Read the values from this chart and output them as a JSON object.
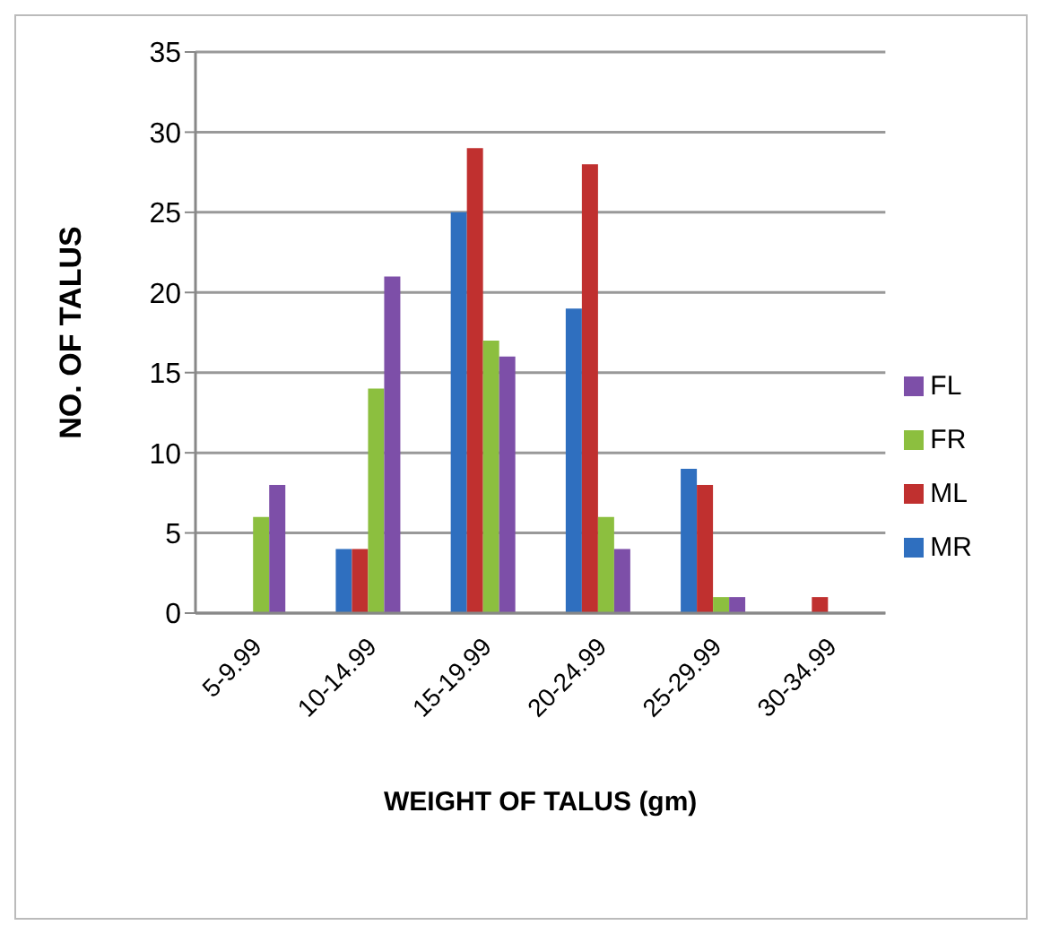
{
  "chart_data": {
    "type": "bar",
    "xlabel": "WEIGHT OF TALUS (gm)",
    "ylabel": "NO. OF TALUS",
    "categories": [
      "5-9.99",
      "10-14.99",
      "15-19.99",
      "20-24.99",
      "25-29.99",
      "30-34.99"
    ],
    "series": [
      {
        "name": "MR",
        "color": "#2f6fbf",
        "values": [
          0,
          4,
          25,
          19,
          9,
          0
        ]
      },
      {
        "name": "ML",
        "color": "#c0302f",
        "values": [
          0,
          4,
          29,
          28,
          8,
          1
        ]
      },
      {
        "name": "FR",
        "color": "#8cbf3f",
        "values": [
          6,
          14,
          17,
          6,
          1,
          0
        ]
      },
      {
        "name": "FL",
        "color": "#7d4fa8",
        "values": [
          8,
          21,
          16,
          4,
          1,
          0
        ]
      }
    ],
    "ylim": [
      0,
      35
    ],
    "yticks": [
      0,
      5,
      10,
      15,
      20,
      25,
      30,
      35
    ],
    "grid": "y",
    "legend": "right"
  }
}
